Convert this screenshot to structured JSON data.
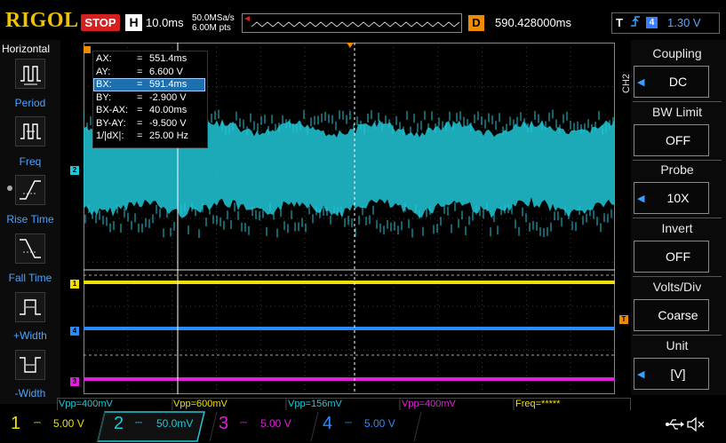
{
  "top": {
    "brand": "RIGOL",
    "run_state": "STOP",
    "horizontal_key": "H",
    "timebase": "10.0ms",
    "sample_rate": "50.0MSa/s",
    "memory_depth": "6.00M pts",
    "delay_key": "D",
    "delay_value": "590.428000ms",
    "trigger_key": "T",
    "trigger_source": "4",
    "trigger_level": "1.30 V"
  },
  "left_panel": {
    "title": "Horizontal",
    "items": [
      {
        "label": "Period",
        "icon": "period-icon"
      },
      {
        "label": "Freq",
        "icon": "freq-icon"
      },
      {
        "label": "Rise Time",
        "icon": "rise-time-icon"
      },
      {
        "label": "Fall Time",
        "icon": "fall-time-icon"
      },
      {
        "label": "+Width",
        "icon": "positive-width-icon"
      },
      {
        "label": "-Width",
        "icon": "negative-width-icon"
      }
    ]
  },
  "right_menu": {
    "channel_tag": "CH2",
    "items": [
      {
        "title": "Coupling",
        "value": "DC",
        "has_arrow": true
      },
      {
        "title": "BW Limit",
        "value": "OFF",
        "has_arrow": false
      },
      {
        "title": "Probe",
        "value": "10X",
        "has_arrow": true
      },
      {
        "title": "Invert",
        "value": "OFF",
        "has_arrow": false
      },
      {
        "title": "Volts/Div",
        "value": "Coarse",
        "has_arrow": false
      },
      {
        "title": "Unit",
        "value": "[V]",
        "has_arrow": true
      }
    ]
  },
  "cursor_panel": {
    "rows": [
      {
        "key": "AX:",
        "value": "551.4ms",
        "selected": false
      },
      {
        "key": "AY:",
        "value": "6.600 V",
        "selected": false
      },
      {
        "key": "BX:",
        "value": "591.4ms",
        "selected": true
      },
      {
        "key": "BY:",
        "value": "-2.900 V",
        "selected": false
      },
      {
        "key": "BX-AX:",
        "value": "40.00ms",
        "selected": false
      },
      {
        "key": "BY-AY:",
        "value": "-9.500 V",
        "selected": false
      },
      {
        "key": "1/|dX|:",
        "value": "25.00 Hz",
        "selected": false
      }
    ]
  },
  "measurements": {
    "vpp1": "Vpp=400mV",
    "vpp2": "Vpp=600mV",
    "vpp3": "Vpp=156mV",
    "vpp4": "Vpp=400mV",
    "freq": "Freq=*****"
  },
  "channels": [
    {
      "num": "1",
      "scale": "5.00 V",
      "color": "#f0e000"
    },
    {
      "num": "2",
      "scale": "50.0mV",
      "color": "#21c8d8"
    },
    {
      "num": "3",
      "scale": "5.00 V",
      "color": "#e020d8"
    },
    {
      "num": "4",
      "scale": "5.00 V",
      "color": "#2b8cff"
    }
  ],
  "markers": {
    "ch1": "1",
    "ch2": "2",
    "ch3": "3",
    "ch4": "4",
    "trig": "T"
  },
  "status_icons": {
    "usb": "usb-icon",
    "sound": "speaker-muted-icon"
  },
  "colors": {
    "brand": "#f2c200",
    "stop": "#d32020",
    "accent": "#3aa0ff",
    "ch1": "#f0e000",
    "ch2": "#21c8d8",
    "ch3": "#e020d8",
    "ch4": "#2b8cff"
  }
}
